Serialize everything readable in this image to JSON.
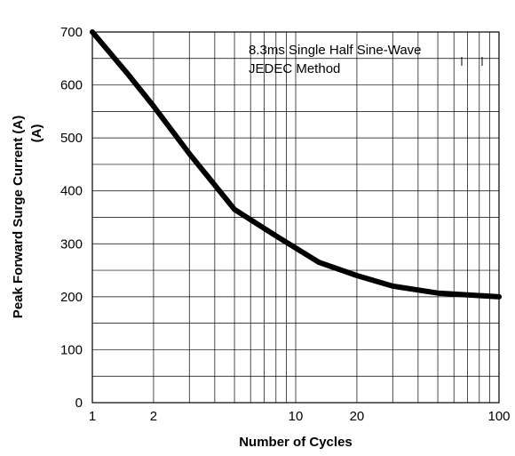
{
  "chart_data": {
    "type": "line",
    "title": "",
    "xlabel": "Number of Cycles",
    "ylabel": "Peak  Forward Surge Current (A)",
    "ylabel_unit_line": "(A)",
    "x_scale": "log",
    "xlim": [
      1,
      100
    ],
    "ylim": [
      0,
      700
    ],
    "x_ticks": [
      {
        "value": 1,
        "label": "1"
      },
      {
        "value": 2,
        "label": "2"
      },
      {
        "value": 10,
        "label": "10"
      },
      {
        "value": 20,
        "label": "20"
      },
      {
        "value": 100,
        "label": "100"
      }
    ],
    "y_ticks": [
      {
        "value": 0,
        "label": "0"
      },
      {
        "value": 100,
        "label": "100"
      },
      {
        "value": 200,
        "label": "200"
      },
      {
        "value": 300,
        "label": "300"
      },
      {
        "value": 400,
        "label": "400"
      },
      {
        "value": 500,
        "label": "500"
      },
      {
        "value": 600,
        "label": "600"
      },
      {
        "value": 700,
        "label": "700"
      }
    ],
    "grid": true,
    "series": [
      {
        "color": "#000000",
        "x": [
          1,
          1.5,
          2,
          3,
          5,
          8,
          13,
          20,
          30,
          50,
          100
        ],
        "y": [
          700,
          620,
          560,
          470,
          365,
          315,
          265,
          240,
          220,
          207,
          200
        ]
      }
    ],
    "annotations": [
      {
        "text": "8.3ms Single Half Sine-Wave"
      },
      {
        "text": "JEDEC Method"
      }
    ]
  }
}
